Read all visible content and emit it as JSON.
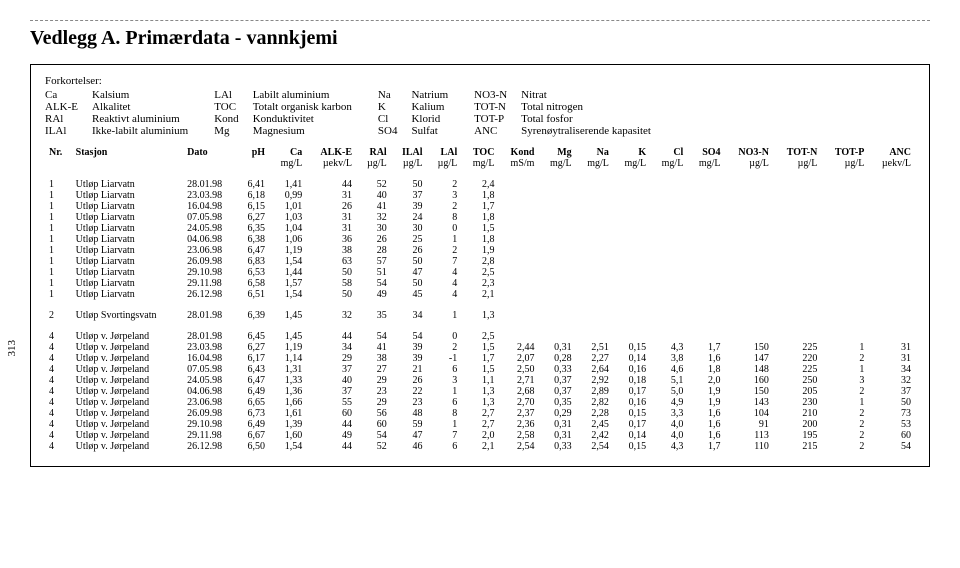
{
  "title": "Vedlegg A. Primærdata - vannkjemi",
  "side_num": "313",
  "forkortelser_label": "Forkortelser:",
  "abbrev": [
    [
      [
        "Ca",
        "Kalsium"
      ],
      [
        "ALK-E",
        "Alkalitet"
      ],
      [
        "RAl",
        "Reaktivt aluminium"
      ],
      [
        "ILAl",
        "Ikke-labilt aluminium"
      ]
    ],
    [
      [
        "LAl",
        "Labilt aluminium"
      ],
      [
        "TOC",
        "Totalt organisk karbon"
      ],
      [
        "Kond",
        "Konduktivitet"
      ],
      [
        "Mg",
        "Magnesium"
      ]
    ],
    [
      [
        "Na",
        "Natrium"
      ],
      [
        "K",
        "Kalium"
      ],
      [
        "Cl",
        "Klorid"
      ],
      [
        "SO4",
        "Sulfat"
      ]
    ],
    [
      [
        "NO3-N",
        "Nitrat"
      ],
      [
        "TOT-N",
        "Total nitrogen"
      ],
      [
        "TOT-P",
        "Total fosfor"
      ],
      [
        "ANC",
        "Syrenøytraliserende kapasitet"
      ]
    ]
  ],
  "headers": [
    "Nr.",
    "Stasjon",
    "Dato",
    "pH",
    "Ca",
    "ALK-E",
    "RAl",
    "ILAl",
    "LAl",
    "TOC",
    "Kond",
    "Mg",
    "Na",
    "K",
    "Cl",
    "SO4",
    "NO3-N",
    "TOT-N",
    "TOT-P",
    "ANC"
  ],
  "units": [
    "",
    "",
    "",
    "",
    "mg/L",
    "µekv/L",
    "µg/L",
    "µg/L",
    "µg/L",
    "mg/L",
    "mS/m",
    "mg/L",
    "mg/L",
    "mg/L",
    "mg/L",
    "mg/L",
    "µg/L",
    "µg/L",
    "µg/L",
    "µekv/L"
  ],
  "block1": [
    [
      "1",
      "Utløp Liarvatn",
      "28.01.98",
      "6,41",
      "1,41",
      "44",
      "52",
      "50",
      "2",
      "2,4"
    ],
    [
      "1",
      "Utløp Liarvatn",
      "23.03.98",
      "6,18",
      "0,99",
      "31",
      "40",
      "37",
      "3",
      "1,8"
    ],
    [
      "1",
      "Utløp Liarvatn",
      "16.04.98",
      "6,15",
      "1,01",
      "26",
      "41",
      "39",
      "2",
      "1,7"
    ],
    [
      "1",
      "Utløp Liarvatn",
      "07.05.98",
      "6,27",
      "1,03",
      "31",
      "32",
      "24",
      "8",
      "1,8"
    ],
    [
      "1",
      "Utløp Liarvatn",
      "24.05.98",
      "6,35",
      "1,04",
      "31",
      "30",
      "30",
      "0",
      "1,5"
    ],
    [
      "1",
      "Utløp Liarvatn",
      "04.06.98",
      "6,38",
      "1,06",
      "36",
      "26",
      "25",
      "1",
      "1,8"
    ],
    [
      "1",
      "Utløp Liarvatn",
      "23.06.98",
      "6,47",
      "1,19",
      "38",
      "28",
      "26",
      "2",
      "1,9"
    ],
    [
      "1",
      "Utløp Liarvatn",
      "26.09.98",
      "6,83",
      "1,54",
      "63",
      "57",
      "50",
      "7",
      "2,8"
    ],
    [
      "1",
      "Utløp Liarvatn",
      "29.10.98",
      "6,53",
      "1,44",
      "50",
      "51",
      "47",
      "4",
      "2,5"
    ],
    [
      "1",
      "Utløp Liarvatn",
      "29.11.98",
      "6,58",
      "1,57",
      "58",
      "54",
      "50",
      "4",
      "2,3"
    ],
    [
      "1",
      "Utløp Liarvatn",
      "26.12.98",
      "6,51",
      "1,54",
      "50",
      "49",
      "45",
      "4",
      "2,1"
    ]
  ],
  "block2": [
    [
      "2",
      "Utløp Svortingsvatn",
      "28.01.98",
      "6,39",
      "1,45",
      "32",
      "35",
      "34",
      "1",
      "1,3"
    ]
  ],
  "block3": [
    [
      "4",
      "Utløp v. Jørpeland",
      "28.01.98",
      "6,45",
      "1,45",
      "44",
      "54",
      "54",
      "0",
      "2,5",
      "",
      "",
      "",
      "",
      "",
      "",
      "",
      "",
      "",
      ""
    ],
    [
      "4",
      "Utløp v. Jørpeland",
      "23.03.98",
      "6,27",
      "1,19",
      "34",
      "41",
      "39",
      "2",
      "1,5",
      "2,44",
      "0,31",
      "2,51",
      "0,15",
      "4,3",
      "1,7",
      "150",
      "225",
      "1",
      "31"
    ],
    [
      "4",
      "Utløp v. Jørpeland",
      "16.04.98",
      "6,17",
      "1,14",
      "29",
      "38",
      "39",
      "-1",
      "1,7",
      "2,07",
      "0,28",
      "2,27",
      "0,14",
      "3,8",
      "1,6",
      "147",
      "220",
      "2",
      "31"
    ],
    [
      "4",
      "Utløp v. Jørpeland",
      "07.05.98",
      "6,43",
      "1,31",
      "37",
      "27",
      "21",
      "6",
      "1,5",
      "2,50",
      "0,33",
      "2,64",
      "0,16",
      "4,6",
      "1,8",
      "148",
      "225",
      "1",
      "34"
    ],
    [
      "4",
      "Utløp v. Jørpeland",
      "24.05.98",
      "6,47",
      "1,33",
      "40",
      "29",
      "26",
      "3",
      "1,1",
      "2,71",
      "0,37",
      "2,92",
      "0,18",
      "5,1",
      "2,0",
      "160",
      "250",
      "3",
      "32"
    ],
    [
      "4",
      "Utløp v. Jørpeland",
      "04.06.98",
      "6,49",
      "1,36",
      "37",
      "23",
      "22",
      "1",
      "1,3",
      "2,68",
      "0,37",
      "2,89",
      "0,17",
      "5,0",
      "1,9",
      "150",
      "205",
      "2",
      "37"
    ],
    [
      "4",
      "Utløp v. Jørpeland",
      "23.06.98",
      "6,65",
      "1,66",
      "55",
      "29",
      "23",
      "6",
      "1,3",
      "2,70",
      "0,35",
      "2,82",
      "0,16",
      "4,9",
      "1,9",
      "143",
      "230",
      "1",
      "50"
    ],
    [
      "4",
      "Utløp v. Jørpeland",
      "26.09.98",
      "6,73",
      "1,61",
      "60",
      "56",
      "48",
      "8",
      "2,7",
      "2,37",
      "0,29",
      "2,28",
      "0,15",
      "3,3",
      "1,6",
      "104",
      "210",
      "2",
      "73"
    ],
    [
      "4",
      "Utløp v. Jørpeland",
      "29.10.98",
      "6,49",
      "1,39",
      "44",
      "60",
      "59",
      "1",
      "2,7",
      "2,36",
      "0,31",
      "2,45",
      "0,17",
      "4,0",
      "1,6",
      "91",
      "200",
      "2",
      "53"
    ],
    [
      "4",
      "Utløp v. Jørpeland",
      "29.11.98",
      "6,67",
      "1,60",
      "49",
      "54",
      "47",
      "7",
      "2,0",
      "2,58",
      "0,31",
      "2,42",
      "0,14",
      "4,0",
      "1,6",
      "113",
      "195",
      "2",
      "60"
    ],
    [
      "4",
      "Utløp v. Jørpeland",
      "26.12.98",
      "6,50",
      "1,54",
      "44",
      "52",
      "46",
      "6",
      "2,1",
      "2,54",
      "0,33",
      "2,54",
      "0,15",
      "4,3",
      "1,7",
      "110",
      "215",
      "2",
      "54"
    ]
  ]
}
